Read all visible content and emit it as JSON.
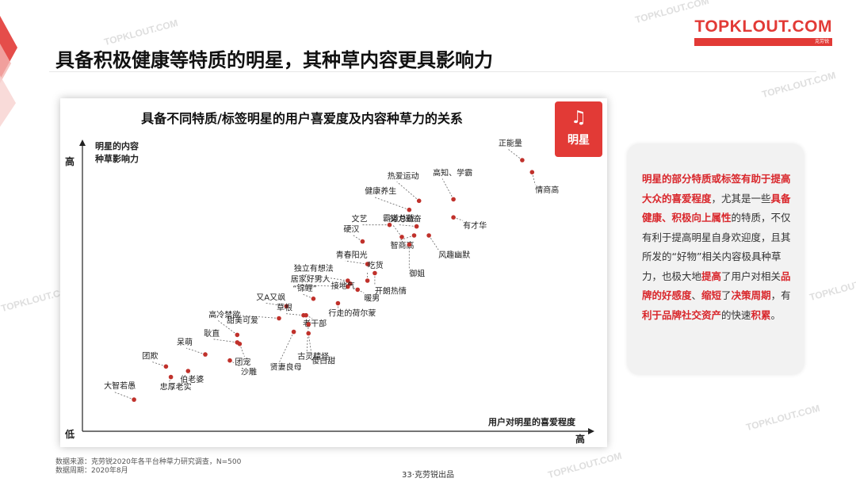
{
  "header": {
    "title": "具备积极健康等特质的明星，其种草内容更具影响力",
    "logo_text": "TOPKLOUT.COM",
    "logo_tagline": "克劳锐"
  },
  "watermark": "TOPKLOUT.COM",
  "chart_data": {
    "type": "scatter",
    "title": "具备不同特质/标签明星的用户喜爱度及内容种草力的关系",
    "badge_label": "明星",
    "ylabel": "明星的内容种草影响力",
    "xlabel": "用户对明星的喜爱程度",
    "y_high_label": "高",
    "y_low_label": "低",
    "x_high_label": "高",
    "points": [
      {
        "label": "正能量",
        "x": 8.95,
        "y": 9.0
      },
      {
        "label": "情商高",
        "x": 9.15,
        "y": 8.6
      },
      {
        "label": "高知、学霸",
        "x": 7.55,
        "y": 7.7
      },
      {
        "label": "热爱运动",
        "x": 6.85,
        "y": 7.65
      },
      {
        "label": "健康养生",
        "x": 6.65,
        "y": 7.35
      },
      {
        "label": "有才华",
        "x": 7.55,
        "y": 7.1
      },
      {
        "label": "文艺",
        "x": 6.25,
        "y": 6.85
      },
      {
        "label": "努力勤奋",
        "x": 6.8,
        "y": 6.8
      },
      {
        "label": "硬汉",
        "x": 5.7,
        "y": 6.3
      },
      {
        "label": "霸道总裁",
        "x": 6.5,
        "y": 6.45
      },
      {
        "label": "智商高",
        "x": 6.75,
        "y": 6.5
      },
      {
        "label": "风趣幽默",
        "x": 7.05,
        "y": 6.5
      },
      {
        "label": "御姐",
        "x": 6.65,
        "y": 6.2
      },
      {
        "label": "青春阳光",
        "x": 5.8,
        "y": 5.55
      },
      {
        "label": "吃货",
        "x": 5.8,
        "y": 5.0
      },
      {
        "label": "独立有想法",
        "x": 5.4,
        "y": 5.0
      },
      {
        "label": "开朗热情",
        "x": 5.95,
        "y": 5.25
      },
      {
        "label": "居家好男人",
        "x": 5.4,
        "y": 4.8
      },
      {
        "label": "接地气",
        "x": 5.45,
        "y": 4.9
      },
      {
        "label": "暖男",
        "x": 5.6,
        "y": 4.7
      },
      {
        "label": "“锦鲤”",
        "x": 4.7,
        "y": 4.4
      },
      {
        "label": "行走的荷尔蒙",
        "x": 5.2,
        "y": 4.25
      },
      {
        "label": "又A又飒",
        "x": 4.15,
        "y": 4.15
      },
      {
        "label": "草根",
        "x": 4.5,
        "y": 3.85
      },
      {
        "label": "老干部",
        "x": 4.55,
        "y": 3.85
      },
      {
        "label": "甜美可爱",
        "x": 4.0,
        "y": 3.75
      },
      {
        "label": "古灵精怪",
        "x": 4.6,
        "y": 3.55
      },
      {
        "label": "高冷禁欲",
        "x": 3.15,
        "y": 3.2
      },
      {
        "label": "贤妻良母",
        "x": 4.3,
        "y": 3.3
      },
      {
        "label": "傻白甜",
        "x": 4.6,
        "y": 3.25
      },
      {
        "label": "耿直",
        "x": 3.15,
        "y": 2.95
      },
      {
        "label": "团宠",
        "x": 3.2,
        "y": 2.9
      },
      {
        "label": "呆萌",
        "x": 2.5,
        "y": 2.55
      },
      {
        "label": "团欺",
        "x": 1.7,
        "y": 2.15
      },
      {
        "label": "沙雕",
        "x": 3.0,
        "y": 2.35
      },
      {
        "label": "伯老婆",
        "x": 2.15,
        "y": 2.0
      },
      {
        "label": "忠厚老实",
        "x": 1.8,
        "y": 1.8
      },
      {
        "label": "大智若愚",
        "x": 1.05,
        "y": 1.05
      }
    ]
  },
  "info_box": {
    "segments": [
      {
        "text": "明星的部分特质或标签有助于提高大众的喜爱程度",
        "hl": true
      },
      {
        "text": "，尤其是一些",
        "hl": false
      },
      {
        "text": "具备健康、积极向上属性",
        "hl": true
      },
      {
        "text": "的特质，不仅有利于提高明星自身欢迎度，且其所发的“好物”相关内容极具种草力，也极大地",
        "hl": false
      },
      {
        "text": "提高",
        "hl": true
      },
      {
        "text": "了用户对相关",
        "hl": false
      },
      {
        "text": "品牌的好感度",
        "hl": true
      },
      {
        "text": "、",
        "hl": false
      },
      {
        "text": "缩短",
        "hl": true
      },
      {
        "text": "了",
        "hl": false
      },
      {
        "text": "决策周期",
        "hl": true
      },
      {
        "text": "，有",
        "hl": false
      },
      {
        "text": "利于品牌社交资产",
        "hl": true
      },
      {
        "text": "的快速",
        "hl": false
      },
      {
        "text": "积累",
        "hl": true
      },
      {
        "text": "。",
        "hl": false
      }
    ]
  },
  "footer": {
    "source_line1": "数据来源：克劳锐2020年各平台种草力研究调查，N=500",
    "source_line2": "数据周期：2020年8月",
    "page_label": "33·克劳锐出品"
  },
  "colors": {
    "accent": "#e23a36",
    "point": "#c0312b",
    "axis": "#222222",
    "highlight": "#d9262b"
  }
}
